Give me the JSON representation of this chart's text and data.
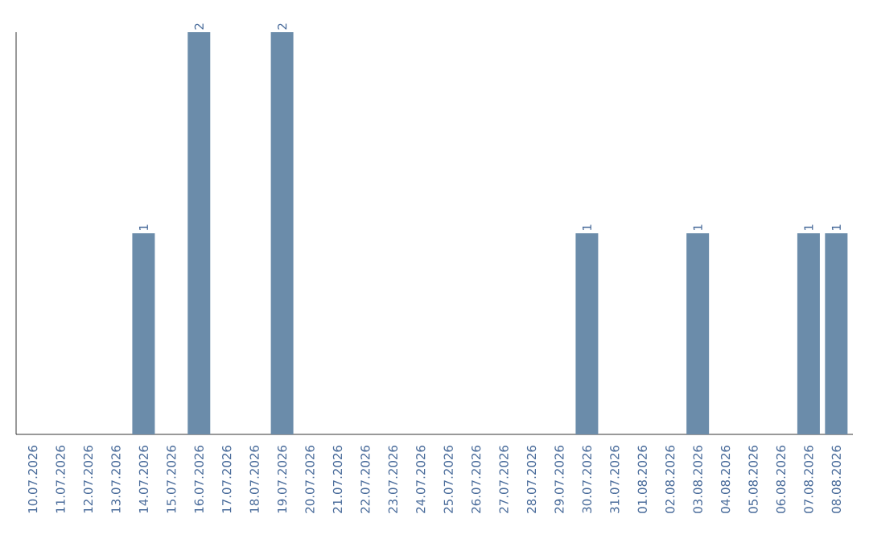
{
  "chart_data": {
    "type": "bar",
    "categories": [
      "10.07.2026",
      "11.07.2026",
      "12.07.2026",
      "13.07.2026",
      "14.07.2026",
      "15.07.2026",
      "16.07.2026",
      "17.07.2026",
      "18.07.2026",
      "19.07.2026",
      "20.07.2026",
      "21.07.2026",
      "22.07.2026",
      "23.07.2026",
      "24.07.2026",
      "25.07.2026",
      "26.07.2026",
      "27.07.2026",
      "28.07.2026",
      "29.07.2026",
      "30.07.2026",
      "31.07.2026",
      "01.08.2026",
      "02.08.2026",
      "03.08.2026",
      "04.08.2026",
      "05.08.2026",
      "06.08.2026",
      "07.08.2026",
      "08.08.2026"
    ],
    "values": [
      0,
      0,
      0,
      0,
      1,
      0,
      2,
      0,
      0,
      2,
      0,
      0,
      0,
      0,
      0,
      0,
      0,
      0,
      0,
      0,
      1,
      0,
      0,
      0,
      1,
      0,
      0,
      0,
      1,
      1
    ],
    "value_labels": [
      null,
      null,
      null,
      null,
      "1",
      null,
      "2",
      null,
      null,
      "2",
      null,
      null,
      null,
      null,
      null,
      null,
      null,
      null,
      null,
      null,
      "1",
      null,
      null,
      null,
      "1",
      null,
      null,
      null,
      "1",
      "1"
    ],
    "color": "#6b8caa",
    "ylim": [
      0,
      2
    ],
    "tick_labels": "x"
  }
}
